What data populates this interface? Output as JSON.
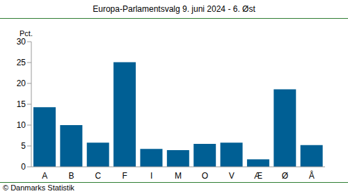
{
  "chart_data": {
    "type": "bar",
    "title": "Europa-Parlamentsvalg 9. juni 2024 - 6. Øst",
    "y_label": "Pct.",
    "note": "© Danmarks Statistik",
    "categories": [
      "A",
      "B",
      "C",
      "F",
      "I",
      "M",
      "O",
      "V",
      "Æ",
      "Ø",
      "Å"
    ],
    "values": [
      14.3,
      10.0,
      5.8,
      25.1,
      4.3,
      4.0,
      5.5,
      5.8,
      1.8,
      18.6,
      5.2
    ],
    "color": "#005f94",
    "ylim": [
      0,
      30
    ],
    "yticks": [
      0,
      5,
      10,
      15,
      20,
      25,
      30
    ],
    "grid": false
  }
}
